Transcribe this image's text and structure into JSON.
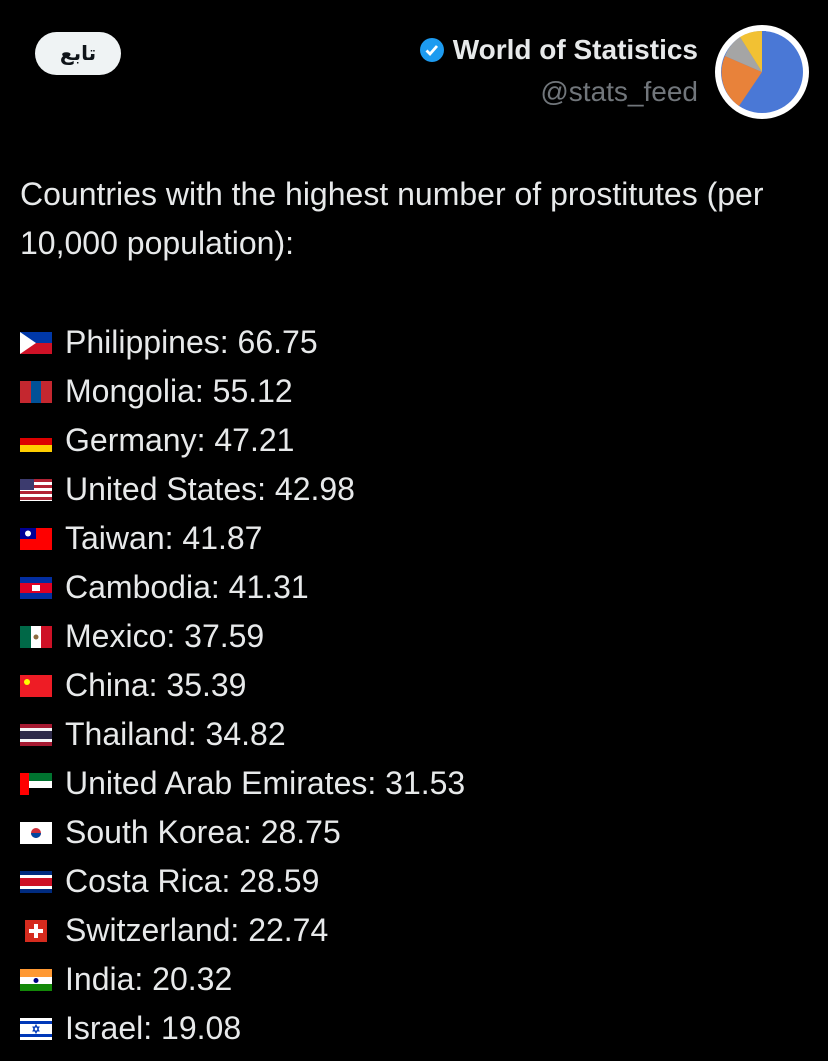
{
  "header": {
    "follow_button": "تابع",
    "name": "World of Statistics",
    "handle": "@stats_feed"
  },
  "tweet": {
    "text": "Countries with the highest number of prostitutes (per 10,000 population):",
    "items": [
      "Philippines: 66.75",
      "Mongolia: 55.12",
      "Germany: 47.21",
      "United States: 42.98",
      "Taiwan: 41.87",
      "Cambodia: 41.31",
      "Mexico: 37.59",
      "China: 35.39",
      "Thailand: 34.82",
      "United Arab Emirates: 31.53",
      "South Korea: 28.75",
      "Costa Rica: 28.59",
      "Switzerland: 22.74",
      "India: 20.32",
      "Israel: 19.08"
    ]
  }
}
